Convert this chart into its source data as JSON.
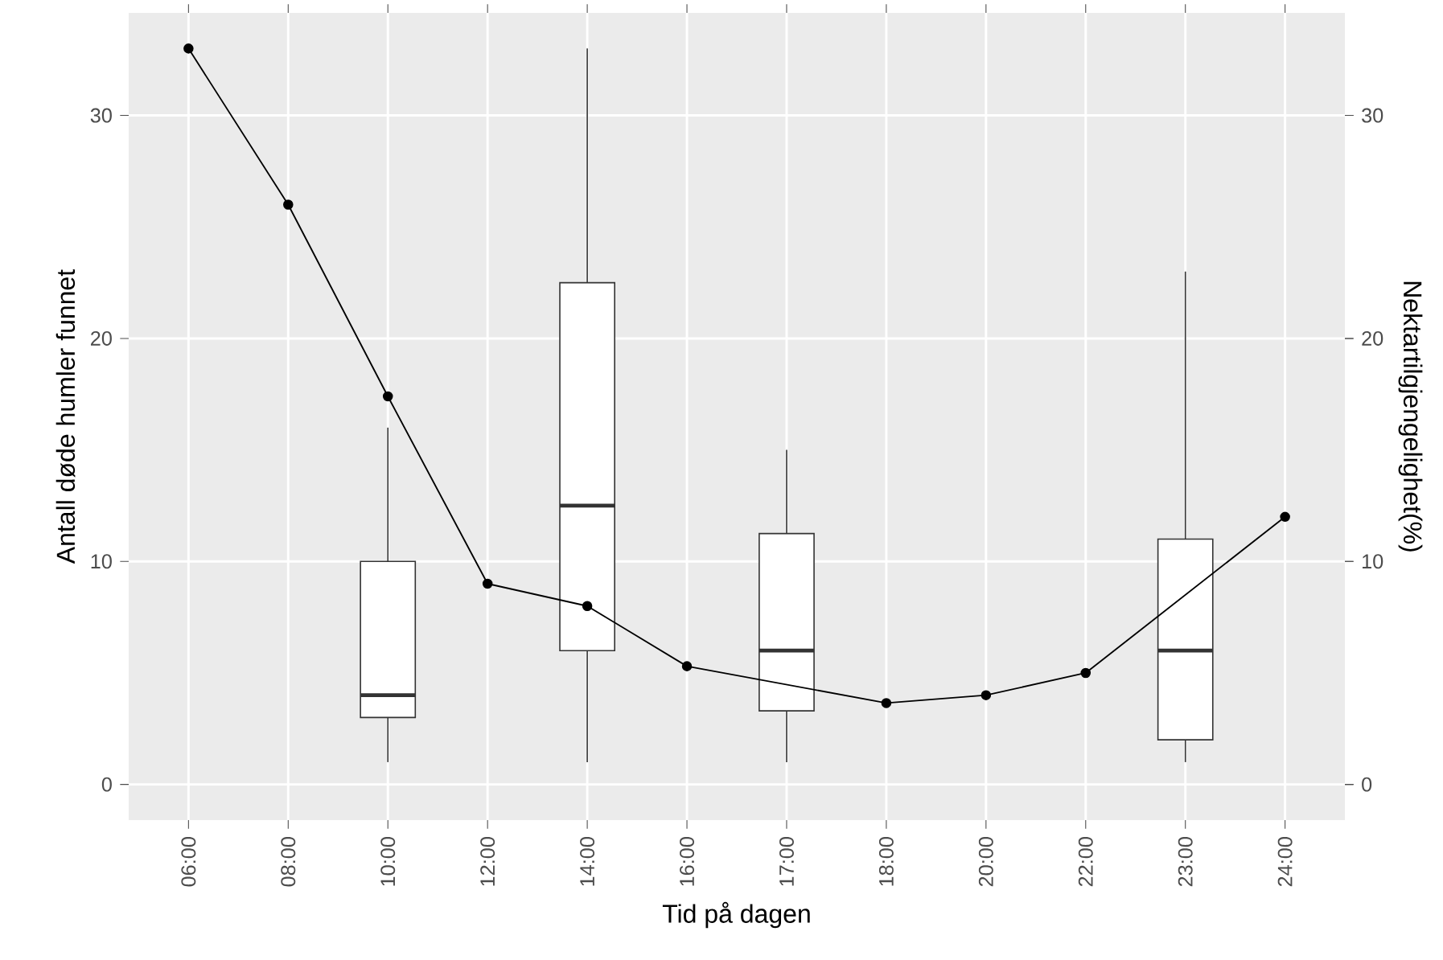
{
  "chart_data": {
    "type": "box",
    "xlabel": "Tid på dagen",
    "ylabel": "Antall døde humler funnet",
    "y2label": "Nektartilgjengelighet(%)",
    "categories": [
      "06:00",
      "08:00",
      "10:00",
      "12:00",
      "14:00",
      "16:00",
      "17:00",
      "18:00",
      "20:00",
      "22:00",
      "23:00",
      "24:00"
    ],
    "boxes": [
      null,
      null,
      {
        "low": 1,
        "q1": 3,
        "median": 4,
        "q3": 10,
        "high": 16
      },
      null,
      {
        "low": 1,
        "q1": 6,
        "median": 12.5,
        "q3": 22.5,
        "high": 33
      },
      null,
      {
        "low": 1,
        "q1": 3.3,
        "median": 6,
        "q3": 11.25,
        "high": 15
      },
      null,
      null,
      null,
      {
        "low": 1,
        "q1": 2,
        "median": 6,
        "q3": 11,
        "high": 23
      },
      null
    ],
    "series": [
      {
        "type": "line",
        "axis": "y2",
        "color": "#000000",
        "marker": "circle",
        "x": [
          "06:00",
          "08:00",
          "10:00",
          "12:00",
          "14:00",
          "16:00",
          "18:00",
          "20:00",
          "22:00",
          "24:00"
        ],
        "values": [
          33,
          26,
          17.4,
          9,
          8,
          5.3,
          3.65,
          4,
          5,
          12
        ]
      }
    ],
    "ylim": [
      -1.6,
      34.6
    ],
    "yticks": [
      0,
      10,
      20,
      30
    ],
    "y2lim": [
      -1.6,
      34.6
    ],
    "y2ticks": [
      0,
      10,
      20,
      30
    ],
    "grid": true
  }
}
